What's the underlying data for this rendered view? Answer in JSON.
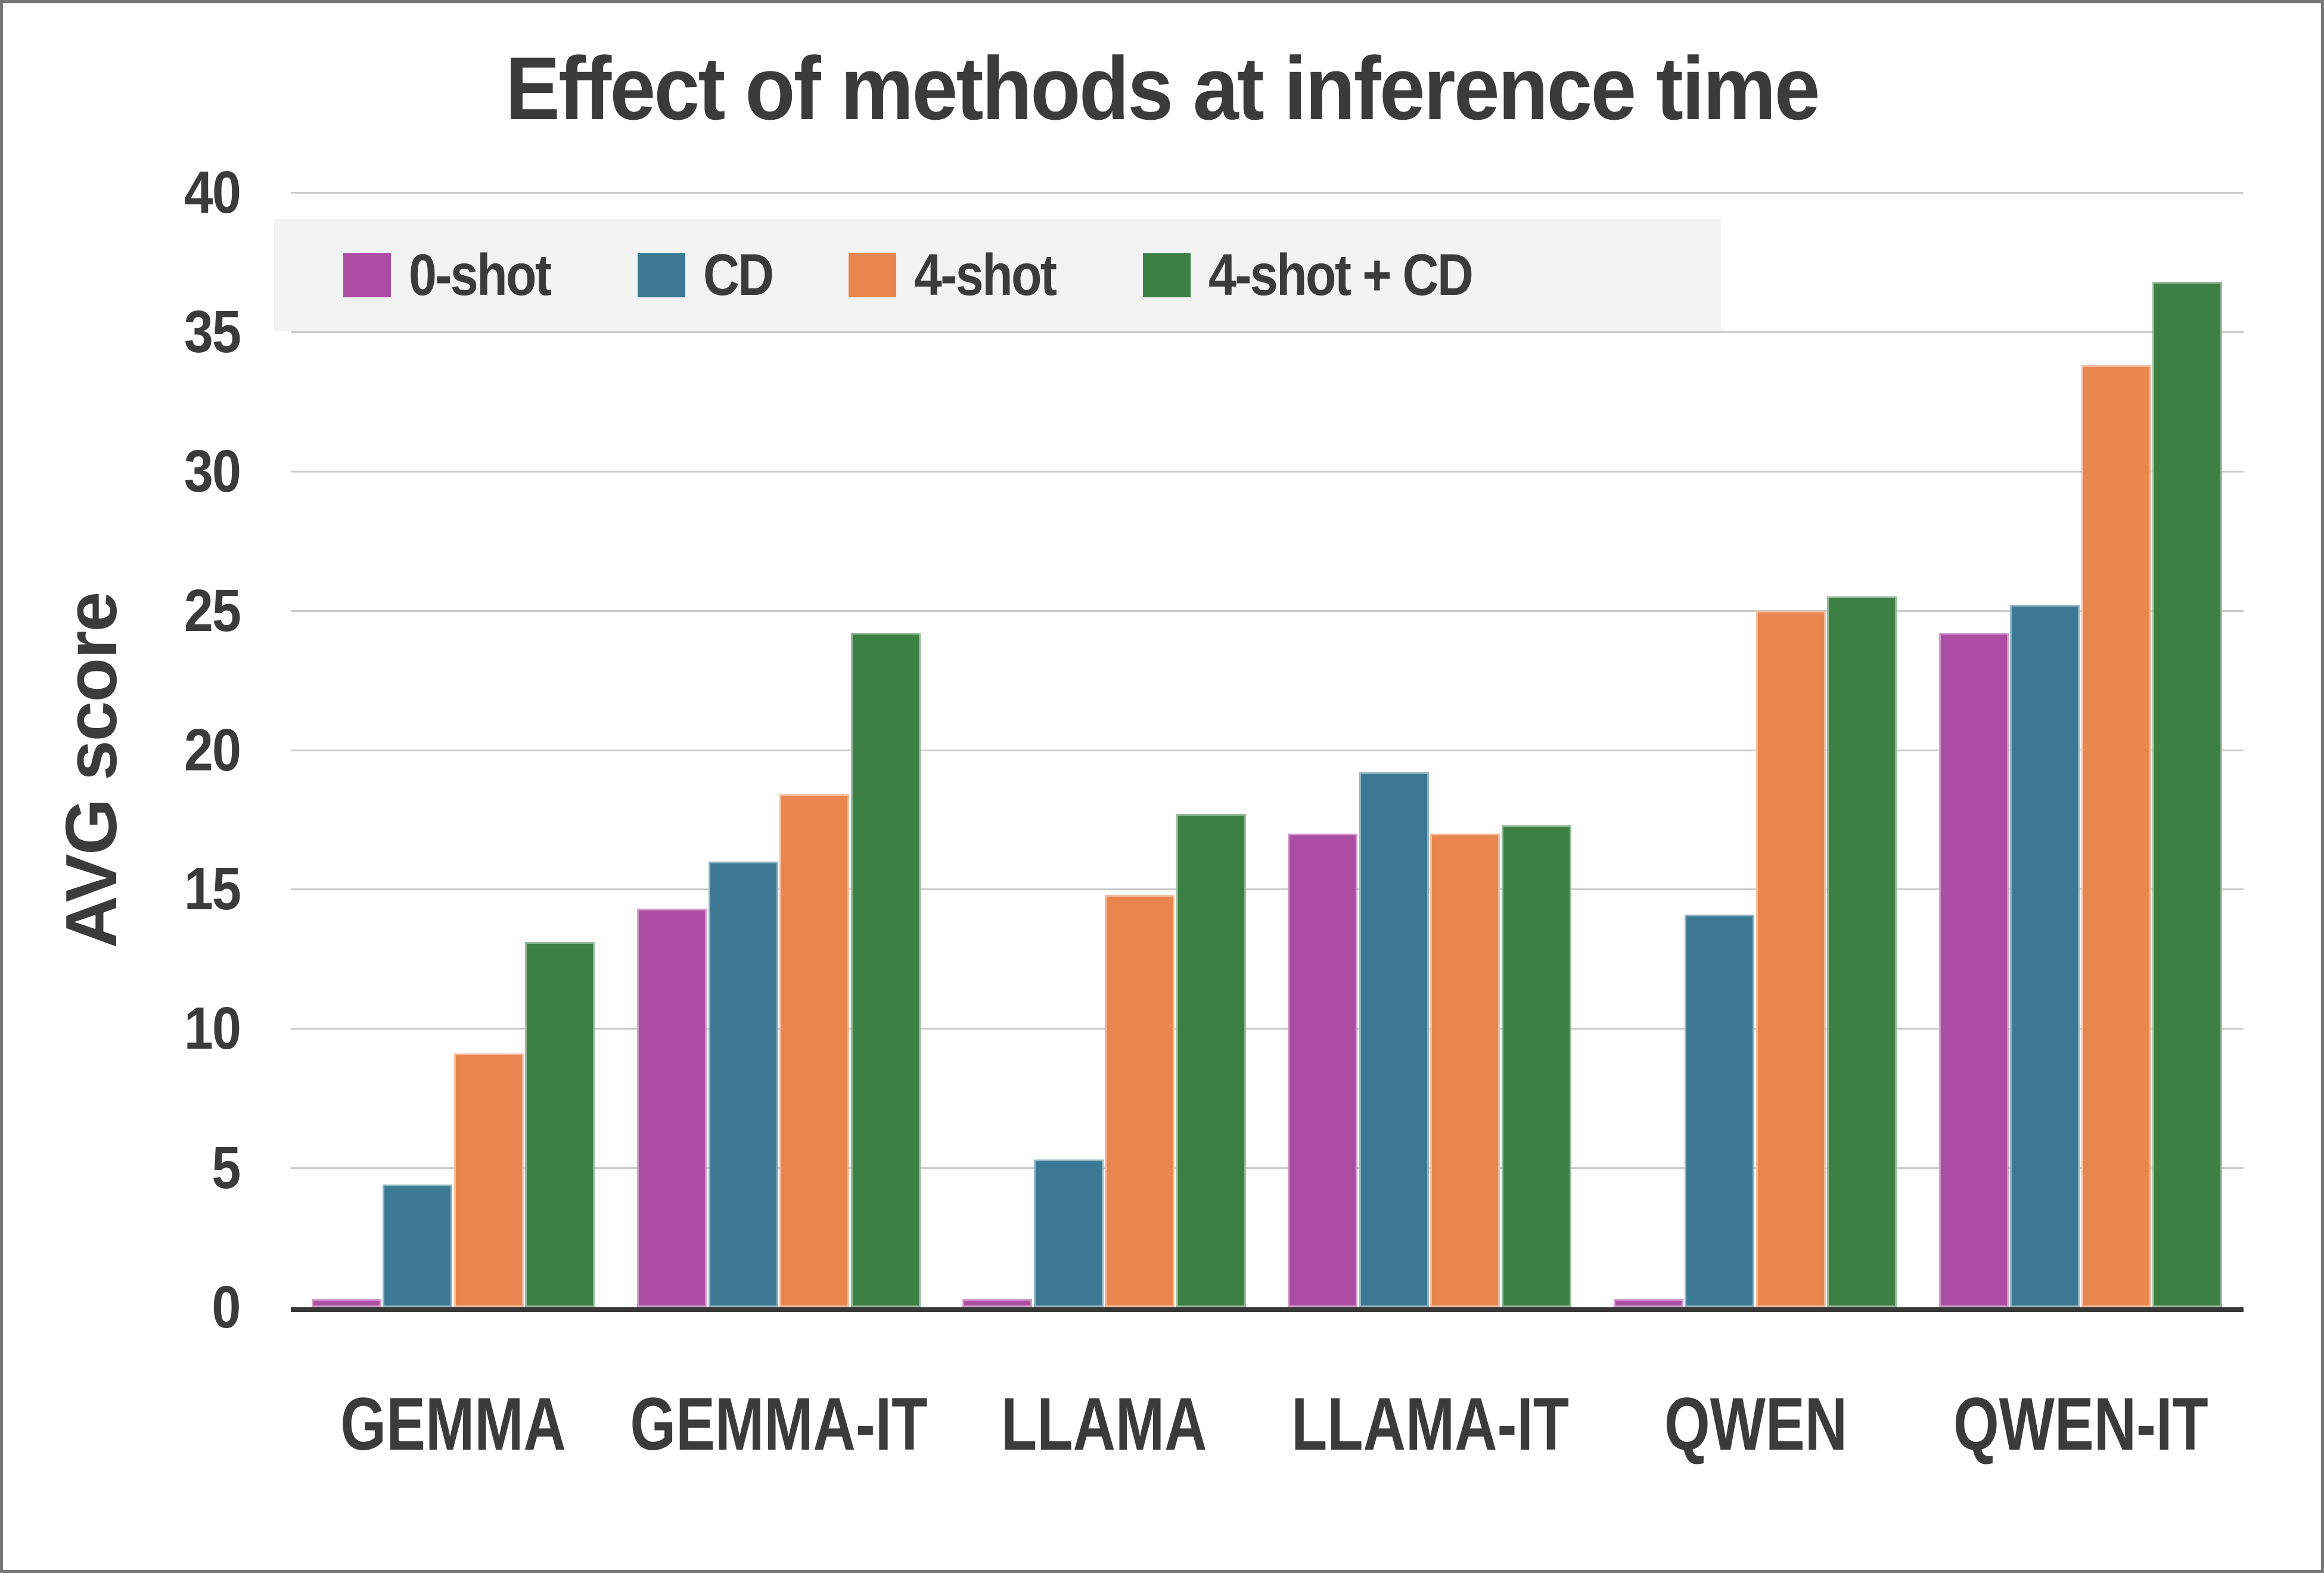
{
  "figure": {
    "title": "Effect of methods at inference time",
    "ylabel": "AVG score"
  },
  "chart_data": {
    "type": "bar",
    "title": "Effect of methods at inference time",
    "xlabel": "",
    "ylabel": "AVG score",
    "ylim": [
      0,
      40
    ],
    "yticks": [
      0,
      5,
      10,
      15,
      20,
      25,
      30,
      35,
      40
    ],
    "grid": true,
    "legend_position": "upper left",
    "categories": [
      "GEMMA",
      "GEMMA-IT",
      "LLAMA",
      "LLAMA-IT",
      "QWEN",
      "QWEN-IT"
    ],
    "series": [
      {
        "name": "0-shot",
        "color": "#aa4da3",
        "values": [
          0.3,
          14.3,
          0.3,
          17.0,
          0.3,
          24.2
        ]
      },
      {
        "name": "CD",
        "color": "#3a7893",
        "values": [
          4.4,
          16.0,
          5.3,
          19.2,
          14.1,
          25.2
        ]
      },
      {
        "name": "4-shot",
        "color": "#e9854e",
        "values": [
          9.1,
          18.4,
          14.8,
          17.0,
          25.0,
          33.8
        ]
      },
      {
        "name": "4-shot + CD",
        "color": "#3c8044",
        "values": [
          13.1,
          24.2,
          17.7,
          17.3,
          25.5,
          36.8
        ]
      }
    ],
    "colors": {
      "grid": "#cbcbcb",
      "axis": "#383838",
      "text": "#3b3b3b",
      "legend_bg": "#f3f3f3"
    }
  }
}
